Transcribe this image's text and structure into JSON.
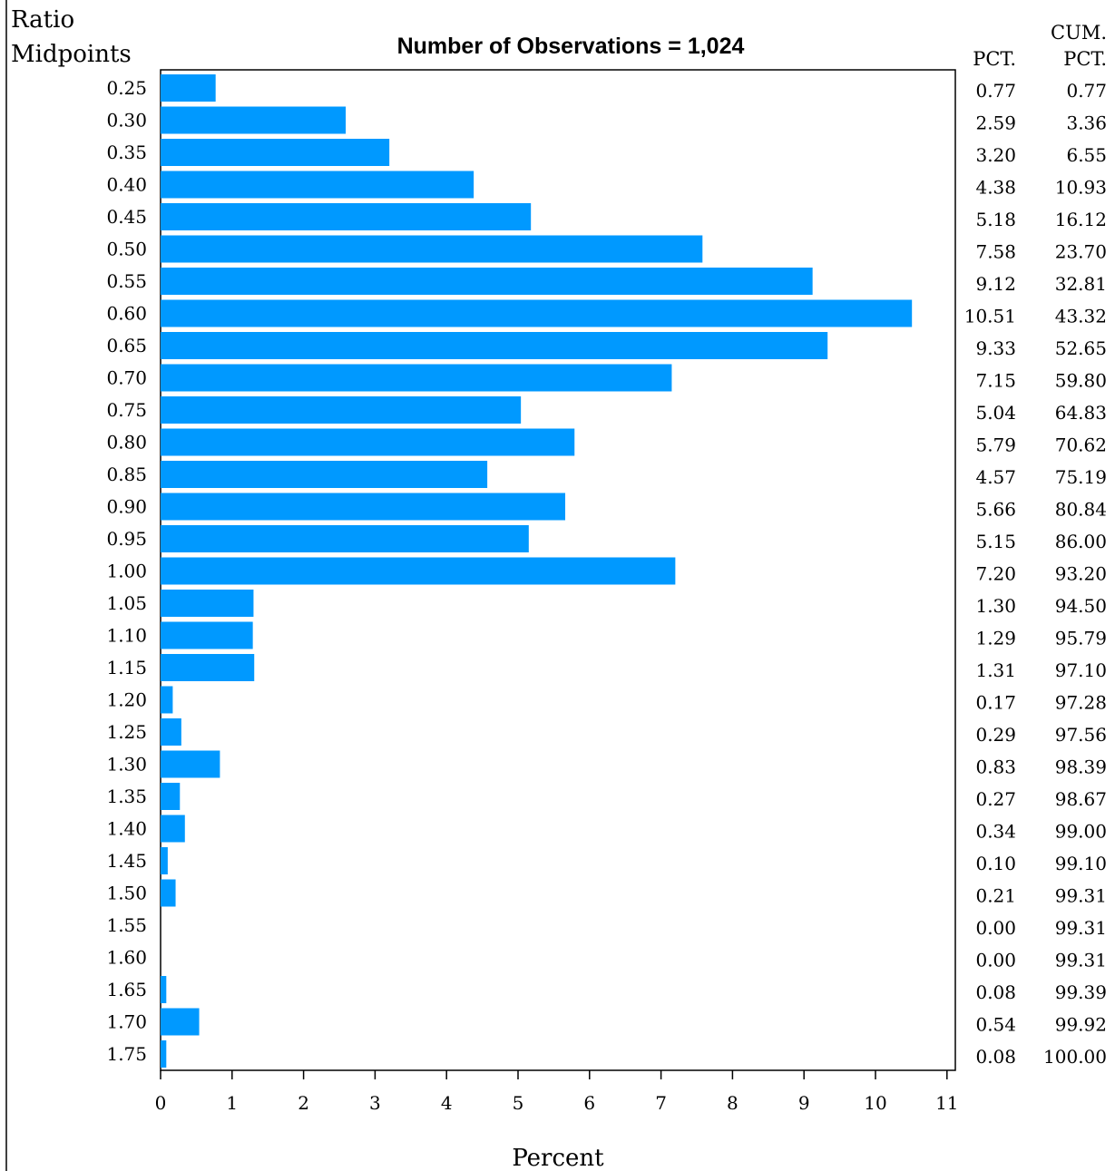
{
  "chart_data": {
    "type": "bar",
    "orientation": "horizontal",
    "title": "Number of Observations = 1,024",
    "ylabel_line1": "Ratio",
    "ylabel_line2": "Midpoints",
    "xlabel": "Percent",
    "pct_header": "PCT.",
    "cum_header_line1": "CUM.",
    "cum_header_line2": "PCT.",
    "xlim": [
      0,
      11
    ],
    "xticks": [
      "0",
      "1",
      "2",
      "3",
      "4",
      "5",
      "6",
      "7",
      "8",
      "9",
      "10",
      "11"
    ],
    "bar_color": "#0099ff",
    "categories": [
      "0.25",
      "0.30",
      "0.35",
      "0.40",
      "0.45",
      "0.50",
      "0.55",
      "0.60",
      "0.65",
      "0.70",
      "0.75",
      "0.80",
      "0.85",
      "0.90",
      "0.95",
      "1.00",
      "1.05",
      "1.10",
      "1.15",
      "1.20",
      "1.25",
      "1.30",
      "1.35",
      "1.40",
      "1.45",
      "1.50",
      "1.55",
      "1.60",
      "1.65",
      "1.70",
      "1.75"
    ],
    "values": [
      0.77,
      2.59,
      3.2,
      4.38,
      5.18,
      7.58,
      9.12,
      10.51,
      9.33,
      7.15,
      5.04,
      5.79,
      4.57,
      5.66,
      5.15,
      7.2,
      1.3,
      1.29,
      1.31,
      0.17,
      0.29,
      0.83,
      0.27,
      0.34,
      0.1,
      0.21,
      0.0,
      0.0,
      0.08,
      0.54,
      0.08
    ],
    "pct_labels": [
      "0.77",
      "2.59",
      "3.20",
      "4.38",
      "5.18",
      "7.58",
      "9.12",
      "10.51",
      "9.33",
      "7.15",
      "5.04",
      "5.79",
      "4.57",
      "5.66",
      "5.15",
      "7.20",
      "1.30",
      "1.29",
      "1.31",
      "0.17",
      "0.29",
      "0.83",
      "0.27",
      "0.34",
      "0.10",
      "0.21",
      "0.00",
      "0.00",
      "0.08",
      "0.54",
      "0.08"
    ],
    "cum_pct_labels": [
      "0.77",
      "3.36",
      "6.55",
      "10.93",
      "16.12",
      "23.70",
      "32.81",
      "43.32",
      "52.65",
      "59.80",
      "64.83",
      "70.62",
      "75.19",
      "80.84",
      "86.00",
      "93.20",
      "94.50",
      "95.79",
      "97.10",
      "97.28",
      "97.56",
      "98.39",
      "98.67",
      "99.00",
      "99.10",
      "99.31",
      "99.31",
      "99.31",
      "99.39",
      "99.92",
      "100.00"
    ]
  }
}
